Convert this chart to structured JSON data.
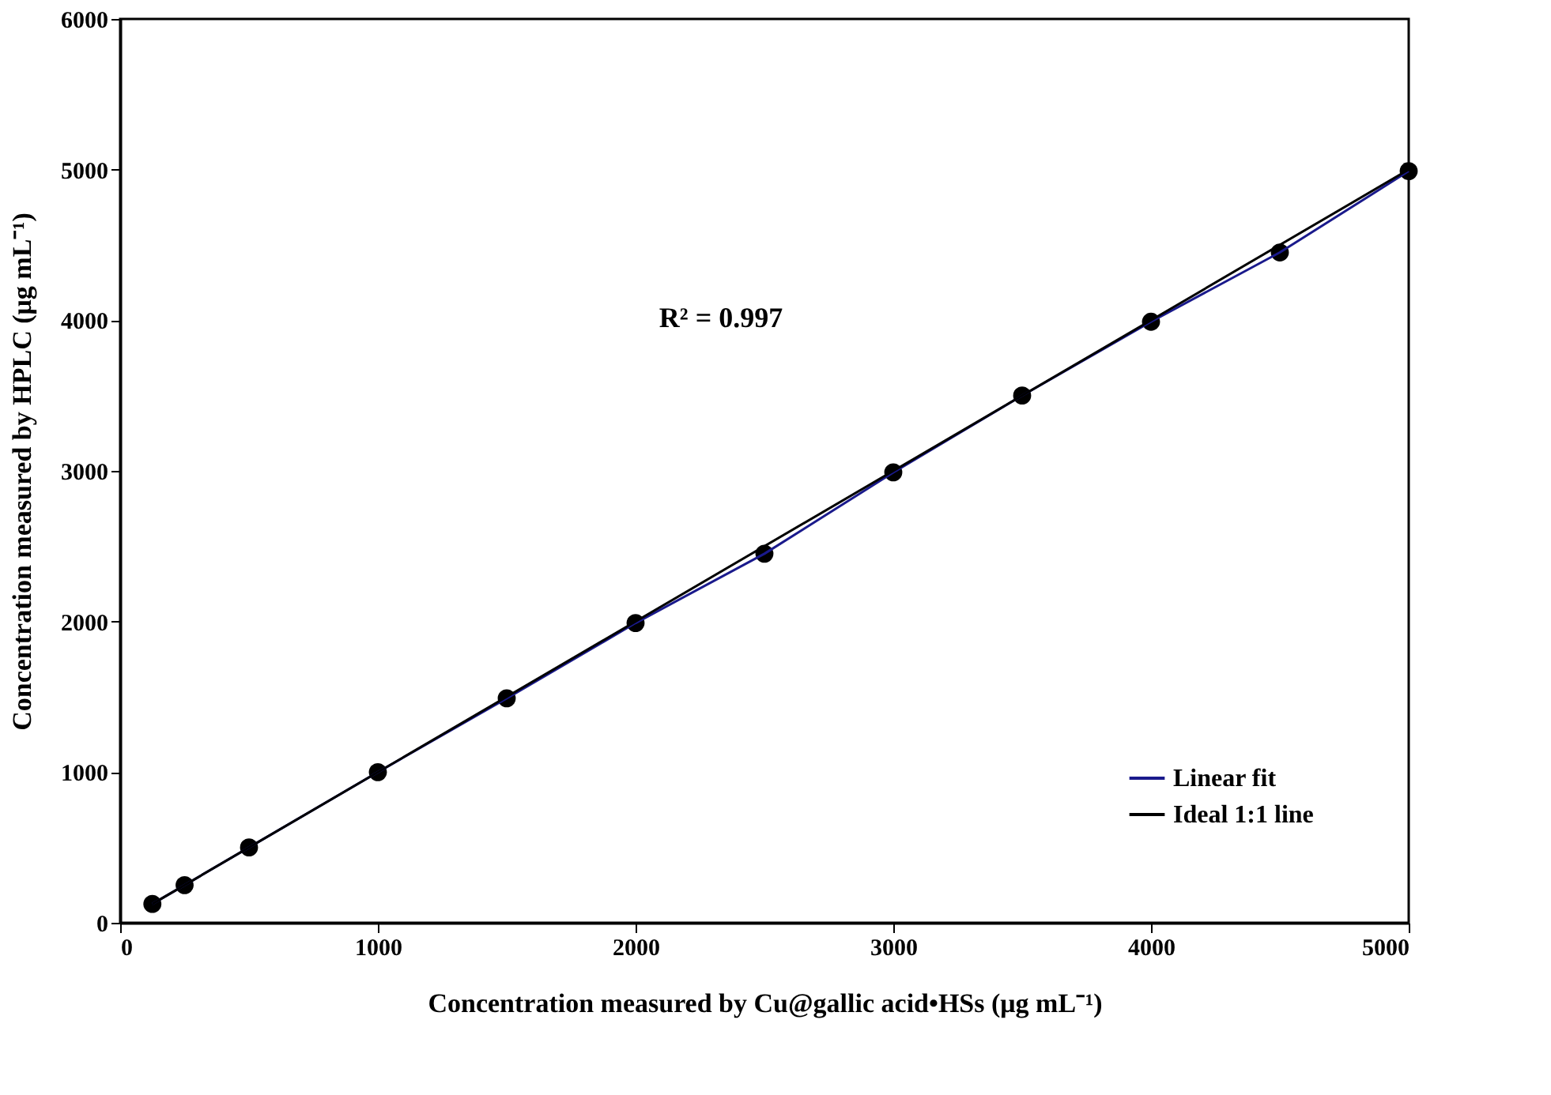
{
  "chart_data": {
    "type": "scatter",
    "xlabel": "Concentration measured by Cu@gallic acid•HSs (μg mL⁻¹)",
    "ylabel": "Concentration measured by HPLC (μg mL⁻¹)",
    "xlim": [
      0,
      5000
    ],
    "xticks": [
      0,
      1000,
      2000,
      3000,
      4000,
      5000
    ],
    "ylim": [
      0,
      6000
    ],
    "yticks": [
      0,
      1000,
      2000,
      3000,
      4000,
      5000,
      6000
    ],
    "grid": false,
    "legend": "bottom right",
    "annotations": [
      "R² = 0.997"
    ],
    "series": [
      {
        "type": "line",
        "name": "Linear fit",
        "color": "#1a1a8c",
        "line_style": "solid",
        "x": [
          125,
          250,
          500,
          1000,
          1500,
          2000,
          2500,
          3000,
          3500,
          4000,
          4500,
          5000
        ],
        "values": [
          125,
          250,
          500,
          1000,
          1490,
          1990,
          2450,
          2990,
          3500,
          3990,
          4450,
          4990
        ]
      },
      {
        "type": "line",
        "name": "Ideal 1:1 line",
        "color": "#000000",
        "line_style": "solid",
        "x": [
          125,
          5000
        ],
        "values": [
          125,
          5000
        ]
      },
      {
        "color": "#000000",
        "marker": "circle",
        "x": [
          125,
          250,
          500,
          1000,
          1500,
          2000,
          2500,
          3000,
          3500,
          4000,
          4500,
          5000
        ],
        "values": [
          125,
          250,
          500,
          1000,
          1490,
          1990,
          2450,
          2990,
          3500,
          3990,
          4450,
          4990
        ]
      }
    ]
  }
}
